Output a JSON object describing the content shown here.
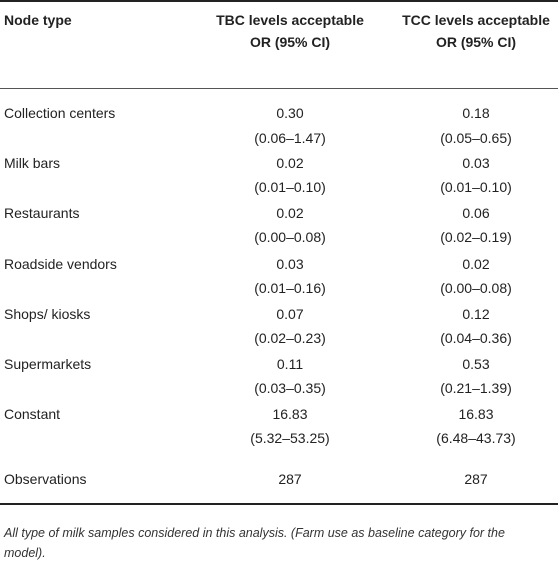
{
  "headers": {
    "col1": "Node type",
    "col2": "TBC levels acceptable OR (95% CI)",
    "col3": "TCC levels acceptable OR (95% CI)"
  },
  "rows": [
    {
      "label": "Collection centers",
      "tbc": "0.30",
      "tbc_ci": "(0.06–1.47)",
      "tcc": "0.18",
      "tcc_ci": "(0.05–0.65)"
    },
    {
      "label": "Milk bars",
      "tbc": "0.02",
      "tbc_ci": "(0.01–0.10)",
      "tcc": "0.03",
      "tcc_ci": "(0.01–0.10)"
    },
    {
      "label": "Restaurants",
      "tbc": "0.02",
      "tbc_ci": "(0.00–0.08)",
      "tcc": "0.06",
      "tcc_ci": "(0.02–0.19)"
    },
    {
      "label": "Roadside vendors",
      "tbc": "0.03",
      "tbc_ci": "(0.01–0.16)",
      "tcc": "0.02",
      "tcc_ci": "(0.00–0.08)"
    },
    {
      "label": "Shops/ kiosks",
      "tbc": "0.07",
      "tbc_ci": "(0.02–0.23)",
      "tcc": "0.12",
      "tcc_ci": "(0.04–0.36)"
    },
    {
      "label": "Supermarkets",
      "tbc": "0.11",
      "tbc_ci": "(0.03–0.35)",
      "tcc": "0.53",
      "tcc_ci": "(0.21–1.39)"
    },
    {
      "label": "Constant",
      "tbc": "16.83",
      "tbc_ci": "(5.32–53.25)",
      "tcc": "16.83",
      "tcc_ci": "(6.48–43.73)"
    }
  ],
  "observations": {
    "label": "Observations",
    "tbc": "287",
    "tcc": "287"
  },
  "footnote": "All type of milk samples considered in this analysis. (Farm use as baseline category for the model)."
}
